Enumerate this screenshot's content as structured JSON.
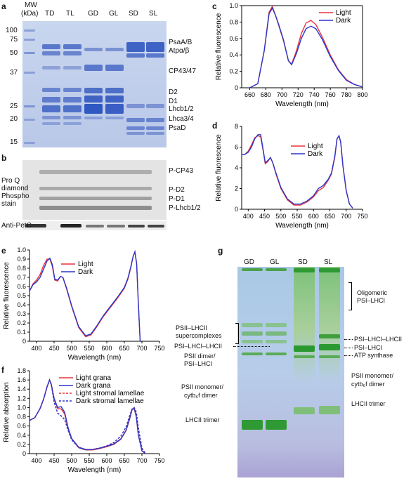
{
  "panels": {
    "a": {
      "label": "a",
      "mw_header": [
        "MW",
        "(kDa)"
      ],
      "lanes": [
        "TD",
        "TL",
        "GD",
        "GL",
        "SD",
        "SL"
      ],
      "markers": [
        "100",
        "75",
        "50",
        "37",
        "25",
        "20",
        "15"
      ],
      "bands": [
        "PsaA/B",
        "Atpα/β",
        "CP43/47",
        "D2",
        "D1",
        "Lhcb1/2",
        "Lhca3/4",
        "PsaD"
      ]
    },
    "b": {
      "label": "b",
      "stain": [
        "Pro Q",
        "diamond",
        "Phospho",
        "stain"
      ],
      "bands": [
        "P-CP43",
        "P-D2",
        "P-D1",
        "P-Lhcb1/2"
      ],
      "loading": "Anti-PetC"
    },
    "g": {
      "label": "g",
      "lanes": [
        "GD",
        "GL",
        "SD",
        "SL"
      ],
      "left_labels": [
        "PSII–LHCII",
        "supercomplexes",
        "PSI–LHCI–LHCII",
        "PSII dimer/",
        "PSI–LHCI",
        "PSII monomer/",
        "cytb₆f dimer",
        "LHCII trimer"
      ],
      "right_labels": [
        "Oligomeric",
        "PSI–LHCI",
        "PSI–LHCI–LHCII",
        "PSI–LHCI",
        "ATP synthase",
        "PSII monomer/",
        "cytb₆f dimer",
        "LHCII trimer"
      ]
    }
  },
  "chart_data": [
    {
      "panel": "c",
      "type": "line",
      "xlabel": "Wavelength (nm)",
      "ylabel": "Relative fluorescence",
      "xlim": [
        650,
        800
      ],
      "ylim": [
        0,
        1.0
      ],
      "xticks": [
        660,
        680,
        700,
        720,
        740,
        760,
        780,
        800
      ],
      "yticks": [
        0,
        0.2,
        0.4,
        0.6,
        0.8,
        1.0
      ],
      "legend_position": "top-right",
      "series": [
        {
          "name": "Light",
          "color": "#e8323c",
          "dash": "",
          "x": [
            660,
            670,
            678,
            684,
            688,
            692,
            696,
            702,
            708,
            712,
            718,
            724,
            730,
            736,
            742,
            750,
            760,
            770,
            780,
            790,
            800
          ],
          "y": [
            0.0,
            0.05,
            0.45,
            0.92,
            0.99,
            0.88,
            0.76,
            0.57,
            0.33,
            0.29,
            0.45,
            0.66,
            0.79,
            0.82,
            0.77,
            0.62,
            0.4,
            0.22,
            0.1,
            0.04,
            0.01
          ]
        },
        {
          "name": "Dark",
          "color": "#2b37c8",
          "dash": "",
          "x": [
            660,
            670,
            678,
            684,
            688,
            692,
            696,
            702,
            708,
            712,
            718,
            724,
            730,
            736,
            742,
            750,
            760,
            770,
            780,
            790,
            800
          ],
          "y": [
            0.0,
            0.05,
            0.45,
            0.9,
            0.97,
            0.88,
            0.77,
            0.58,
            0.33,
            0.28,
            0.42,
            0.6,
            0.72,
            0.75,
            0.72,
            0.59,
            0.38,
            0.21,
            0.09,
            0.04,
            0.01
          ]
        }
      ]
    },
    {
      "panel": "d",
      "type": "line",
      "xlabel": "Wavelength (nm)",
      "ylabel": "Relative fluorescence",
      "xlim": [
        380,
        750
      ],
      "ylim": [
        0,
        8
      ],
      "xticks": [
        400,
        450,
        500,
        550,
        600,
        650,
        700,
        750
      ],
      "yticks": [
        0,
        2,
        4,
        6,
        8
      ],
      "legend_position": "top-center",
      "series": [
        {
          "name": "Light",
          "color": "#e8323c",
          "dash": "",
          "x": [
            380,
            390,
            400,
            410,
            420,
            430,
            438,
            445,
            452,
            460,
            468,
            475,
            485,
            500,
            520,
            540,
            560,
            580,
            600,
            615,
            630,
            645,
            655,
            665,
            672,
            678,
            683,
            690,
            700,
            710,
            720
          ],
          "y": [
            5.3,
            5.3,
            5.6,
            6.2,
            6.9,
            7.1,
            7.0,
            5.8,
            4.4,
            4.6,
            5.0,
            4.5,
            3.4,
            2.0,
            0.9,
            0.4,
            0.4,
            0.7,
            1.2,
            1.8,
            2.1,
            2.8,
            3.4,
            5.0,
            6.8,
            7.1,
            6.5,
            4.2,
            1.8,
            0.5,
            0.1
          ]
        },
        {
          "name": "Dark",
          "color": "#2b37c8",
          "dash": "",
          "x": [
            380,
            390,
            400,
            410,
            420,
            430,
            438,
            445,
            452,
            460,
            468,
            475,
            485,
            500,
            520,
            540,
            560,
            580,
            600,
            615,
            630,
            645,
            655,
            665,
            672,
            678,
            683,
            690,
            700,
            710,
            720
          ],
          "y": [
            5.3,
            5.3,
            5.5,
            6.0,
            6.8,
            7.2,
            7.2,
            5.9,
            4.5,
            4.7,
            5.0,
            4.5,
            3.5,
            2.1,
            1.0,
            0.5,
            0.5,
            0.8,
            1.3,
            2.0,
            2.3,
            2.9,
            3.5,
            5.1,
            6.8,
            7.1,
            6.5,
            4.2,
            1.8,
            0.5,
            0.1
          ]
        }
      ]
    },
    {
      "panel": "e",
      "type": "line",
      "xlabel": "Wavelength (nm)",
      "ylabel": "Relative fluorescence",
      "xlim": [
        380,
        750
      ],
      "ylim": [
        0,
        1.0
      ],
      "xticks": [
        400,
        450,
        500,
        550,
        600,
        650,
        700,
        750
      ],
      "yticks": [
        0,
        0.1,
        0.2,
        0.3,
        0.4,
        0.5,
        0.6,
        0.7,
        0.8,
        0.9,
        1.0
      ],
      "legend_position": "top-center",
      "series": [
        {
          "name": "Light",
          "color": "#e8323c",
          "dash": "",
          "x": [
            380,
            390,
            400,
            410,
            420,
            430,
            438,
            445,
            452,
            460,
            468,
            475,
            485,
            500,
            520,
            540,
            555,
            570,
            590,
            610,
            630,
            650,
            660,
            668,
            675,
            680,
            685,
            690,
            695
          ],
          "y": [
            0.55,
            0.63,
            0.67,
            0.73,
            0.83,
            0.9,
            0.9,
            0.82,
            0.67,
            0.66,
            0.71,
            0.7,
            0.58,
            0.38,
            0.15,
            0.05,
            0.07,
            0.15,
            0.27,
            0.37,
            0.47,
            0.58,
            0.68,
            0.8,
            0.93,
            0.98,
            0.85,
            0.4,
            0.0
          ]
        },
        {
          "name": "Dark",
          "color": "#2b37c8",
          "dash": "",
          "x": [
            380,
            390,
            400,
            410,
            420,
            430,
            438,
            445,
            452,
            460,
            468,
            475,
            485,
            500,
            520,
            540,
            555,
            570,
            590,
            610,
            630,
            650,
            660,
            668,
            675,
            680,
            685,
            690,
            695
          ],
          "y": [
            0.55,
            0.62,
            0.65,
            0.7,
            0.79,
            0.88,
            0.91,
            0.84,
            0.68,
            0.67,
            0.71,
            0.7,
            0.59,
            0.39,
            0.16,
            0.06,
            0.08,
            0.16,
            0.28,
            0.38,
            0.48,
            0.59,
            0.69,
            0.81,
            0.93,
            0.98,
            0.85,
            0.4,
            0.0
          ]
        }
      ]
    },
    {
      "panel": "f",
      "type": "line",
      "xlabel": "Wavelength (nm)",
      "ylabel": "Relative absorption",
      "xlim": [
        380,
        750
      ],
      "ylim": [
        0,
        1.8
      ],
      "xticks": [
        400,
        450,
        500,
        550,
        600,
        650,
        700,
        750
      ],
      "yticks": [
        0,
        0.2,
        0.4,
        0.6,
        0.8,
        1.0,
        1.2,
        1.4,
        1.6,
        1.8
      ],
      "legend_position": "top-center",
      "series": [
        {
          "name": "Light grana",
          "color": "#e8323c",
          "dash": "",
          "x": [
            380,
            395,
            410,
            420,
            430,
            437,
            442,
            450,
            460,
            470,
            480,
            490,
            500,
            520,
            540,
            560,
            580,
            600,
            620,
            640,
            655,
            665,
            672,
            678,
            684,
            690,
            700,
            710
          ],
          "y": [
            0.72,
            0.78,
            0.98,
            1.18,
            1.45,
            1.6,
            1.5,
            1.18,
            0.98,
            0.97,
            0.86,
            0.54,
            0.32,
            0.13,
            0.08,
            0.08,
            0.11,
            0.15,
            0.2,
            0.31,
            0.5,
            0.75,
            0.95,
            0.98,
            0.8,
            0.4,
            0.06,
            0.0
          ]
        },
        {
          "name": "Dark grana",
          "color": "#2b37c8",
          "dash": "",
          "x": [
            380,
            395,
            410,
            420,
            430,
            437,
            442,
            450,
            460,
            470,
            480,
            490,
            500,
            520,
            540,
            560,
            580,
            600,
            620,
            640,
            655,
            665,
            672,
            678,
            684,
            690,
            700,
            710
          ],
          "y": [
            0.72,
            0.78,
            0.98,
            1.18,
            1.45,
            1.6,
            1.51,
            1.2,
            1.0,
            1.02,
            0.9,
            0.56,
            0.33,
            0.14,
            0.09,
            0.09,
            0.12,
            0.16,
            0.21,
            0.32,
            0.51,
            0.76,
            0.96,
            0.99,
            0.8,
            0.4,
            0.06,
            0.0
          ]
        },
        {
          "name": "Light stromal lamellae",
          "color": "#e8323c",
          "dash": "3,2",
          "x": [
            380,
            395,
            410,
            420,
            430,
            437,
            442,
            450,
            460,
            470,
            480,
            490,
            500,
            520,
            540,
            560,
            580,
            600,
            620,
            640,
            655,
            665,
            672,
            678,
            684,
            690,
            700,
            710
          ],
          "y": [
            0.72,
            0.78,
            0.98,
            1.18,
            1.45,
            1.6,
            1.5,
            1.12,
            0.88,
            0.82,
            0.74,
            0.5,
            0.3,
            0.13,
            0.08,
            0.09,
            0.12,
            0.17,
            0.24,
            0.38,
            0.58,
            0.82,
            0.97,
            1.0,
            0.9,
            0.55,
            0.12,
            0.0
          ]
        },
        {
          "name": "Dark stromal lamellae",
          "color": "#2b37c8",
          "dash": "3,2",
          "x": [
            380,
            395,
            410,
            420,
            430,
            437,
            442,
            450,
            460,
            470,
            480,
            490,
            500,
            520,
            540,
            560,
            580,
            600,
            620,
            640,
            655,
            665,
            672,
            678,
            684,
            690,
            700,
            710
          ],
          "y": [
            0.72,
            0.78,
            0.98,
            1.18,
            1.45,
            1.6,
            1.5,
            1.12,
            0.88,
            0.82,
            0.74,
            0.5,
            0.3,
            0.13,
            0.08,
            0.09,
            0.12,
            0.17,
            0.24,
            0.38,
            0.58,
            0.82,
            0.97,
            1.0,
            0.9,
            0.55,
            0.12,
            0.0
          ]
        }
      ]
    }
  ]
}
